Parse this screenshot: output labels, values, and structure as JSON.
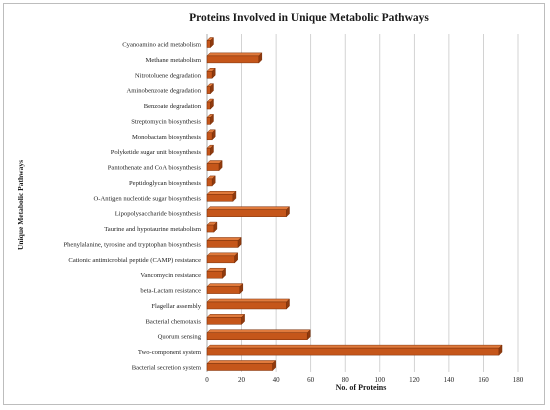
{
  "chart_data": {
    "type": "bar",
    "orientation": "horizontal",
    "title": "Proteins Involved in Unique Metabolic Pathways",
    "xlabel": "No. of Proteins",
    "ylabel": "Unique Metabolic Pathways",
    "xlim": [
      0,
      180
    ],
    "xticks": [
      "0",
      "20",
      "40",
      "60",
      "80",
      "100",
      "120",
      "140",
      "160",
      "180"
    ],
    "grid": "vertical",
    "bar_color": "#c5561a",
    "categories": [
      "Cyanoamino acid metabolism",
      "Methane metabolism",
      "Nitrotoluene degradation",
      "Aminobenzoate degradation",
      "Benzoate degradation",
      "Streptomycin biosynthesis",
      "Monobactam biosynthesis",
      "Polyketide sugar unit biosynthesis",
      "Pantothenate and CoA biosynthesis",
      "Peptidoglycan biosynthesis",
      "O-Antigen nucleotide sugar biosynthesis",
      "Lipopolysaccharide biosynthesis",
      "Taurine and hypotaurine metabolism",
      "Phenylalanine, tyrosine and tryptophan biosynthesis",
      "Cationic antimicrobial peptide (CAMP) resistance",
      "Vancomycin resistance",
      "beta-Lactam resistance",
      "Flagellar assembly",
      "Bacterial chemotaxis",
      "Quorum sensing",
      "Two-component system",
      "Bacterial secretion system"
    ],
    "values": [
      2,
      30,
      3,
      2,
      2,
      2,
      3,
      2,
      7,
      3,
      15,
      46,
      4,
      18,
      16,
      9,
      19,
      46,
      20,
      58,
      169,
      38
    ]
  }
}
